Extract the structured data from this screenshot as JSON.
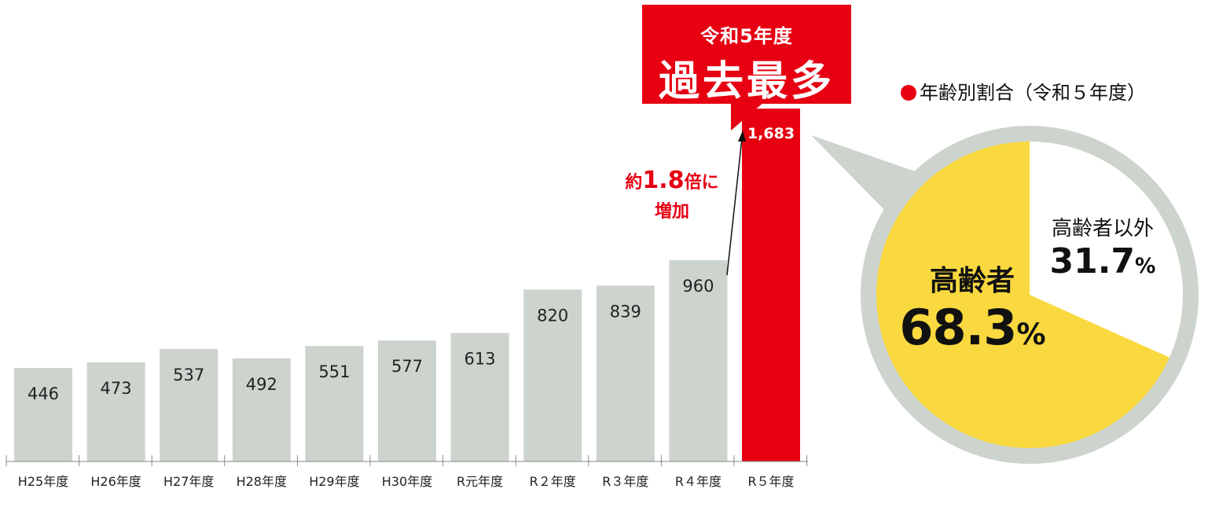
{
  "chart_data": [
    {
      "type": "bar",
      "categories": [
        "H25年度",
        "H26年度",
        "H27年度",
        "H28年度",
        "H29年度",
        "H30年度",
        "R元年度",
        "R２年度",
        "R３年度",
        "R４年度",
        "R５年度"
      ],
      "values": [
        446,
        473,
        537,
        492,
        551,
        577,
        613,
        820,
        839,
        960,
        1683
      ],
      "value_labels": [
        "446",
        "473",
        "537",
        "492",
        "551",
        "577",
        "613",
        "820",
        "839",
        "960",
        "1,683"
      ],
      "highlight_index": 10,
      "ylim": [
        0,
        1800
      ],
      "grid": false,
      "colors": {
        "bar": "#cdd3cd",
        "highlight": "#e60012"
      },
      "annotations": {
        "callout_sub": "令和5年度",
        "callout_main": "過去最多",
        "increase_prefix": "約",
        "increase_value": "1.8",
        "increase_suffix": "倍に",
        "increase_line2": "増加"
      }
    },
    {
      "type": "pie",
      "title": "年齢別割合（令和５年度）",
      "slices": [
        {
          "name": "高齢者",
          "value": 68.3,
          "label": "68.3",
          "color": "#f9d93f"
        },
        {
          "name": "高齢者以外",
          "value": 31.7,
          "label": "31.7",
          "color": "#ffffff"
        }
      ],
      "percent_sign": "%",
      "ring_color": "#cdd3cd"
    }
  ]
}
